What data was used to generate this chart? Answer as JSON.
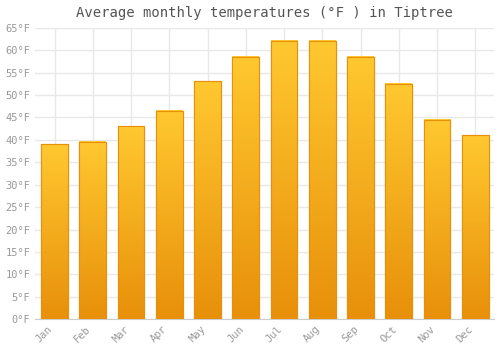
{
  "title": "Average monthly temperatures (°F ) in Tiptree",
  "months": [
    "Jan",
    "Feb",
    "Mar",
    "Apr",
    "May",
    "Jun",
    "Jul",
    "Aug",
    "Sep",
    "Oct",
    "Nov",
    "Dec"
  ],
  "values": [
    39,
    39.5,
    43,
    46.5,
    53,
    58.5,
    62,
    62,
    58.5,
    52.5,
    44.5,
    41
  ],
  "bar_color": "#FFC02A",
  "bar_edge_color": "#E8900A",
  "background_color": "#FFFFFF",
  "grid_color": "#E8E8E8",
  "ylim": [
    0,
    65
  ],
  "yticks": [
    0,
    5,
    10,
    15,
    20,
    25,
    30,
    35,
    40,
    45,
    50,
    55,
    60,
    65
  ],
  "ytick_labels": [
    "0°F",
    "5°F",
    "10°F",
    "15°F",
    "20°F",
    "25°F",
    "30°F",
    "35°F",
    "40°F",
    "45°F",
    "50°F",
    "55°F",
    "60°F",
    "65°F"
  ],
  "title_fontsize": 10,
  "tick_fontsize": 7.5,
  "tick_color": "#999999",
  "title_color": "#555555"
}
